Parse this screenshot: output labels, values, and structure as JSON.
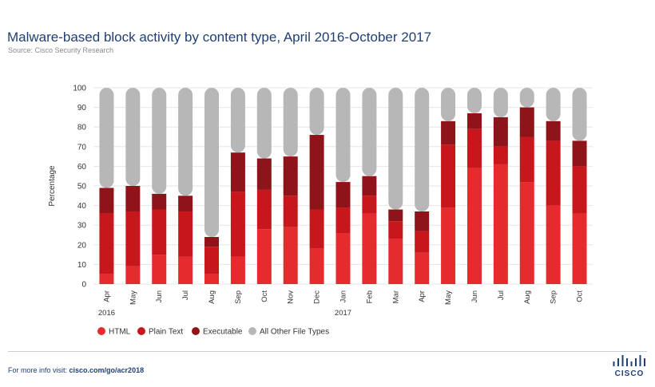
{
  "header": {
    "title": "Malware-based block activity by content type, April 2016-October 2017",
    "source": "Source: Cisco Security Research"
  },
  "footer": {
    "prefix": "For more info visit: ",
    "link": "cisco.com/go/acr2018",
    "logo_text": "CISCO"
  },
  "colors": {
    "HTML": "#e52b2e",
    "Plain Text": "#c8161d",
    "Executable": "#8e1419",
    "All Other File Types": "#b7b7b7"
  },
  "chart_data": {
    "type": "bar",
    "stacked": true,
    "ylabel": "Percentage",
    "xlabel": "",
    "ylim": [
      0,
      100
    ],
    "yticks": [
      0,
      10,
      20,
      30,
      40,
      50,
      60,
      70,
      80,
      90,
      100
    ],
    "grid": true,
    "legend_position": "bottom-left",
    "categories": [
      "Apr",
      "May",
      "Jun",
      "Jul",
      "Aug",
      "Sep",
      "Oct",
      "Nov",
      "Dec",
      "Jan",
      "Feb",
      "Mar",
      "Apr",
      "May",
      "Jun",
      "Jul",
      "Aug",
      "Sep",
      "Oct"
    ],
    "year_labels": [
      {
        "label": "2016",
        "category_index": 0
      },
      {
        "label": "2017",
        "category_index": 9
      }
    ],
    "series": [
      {
        "name": "HTML",
        "values": [
          5,
          9,
          15,
          14,
          5,
          14,
          28,
          29,
          18,
          26,
          36,
          23,
          16,
          39,
          59,
          61,
          52,
          40,
          36
        ]
      },
      {
        "name": "Plain Text",
        "values": [
          31,
          28,
          23,
          23,
          14,
          33,
          20,
          16,
          20,
          13,
          9,
          9,
          11,
          32,
          20,
          9,
          23,
          33,
          24
        ]
      },
      {
        "name": "Executable",
        "values": [
          13,
          13,
          8,
          8,
          5,
          20,
          16,
          20,
          38,
          13,
          10,
          6,
          10,
          12,
          8,
          15,
          15,
          10,
          13
        ]
      },
      {
        "name": "All Other File Types",
        "values": [
          51,
          50,
          54,
          55,
          76,
          33,
          36,
          35,
          24,
          48,
          45,
          62,
          63,
          17,
          13,
          15,
          10,
          17,
          27
        ]
      }
    ]
  }
}
